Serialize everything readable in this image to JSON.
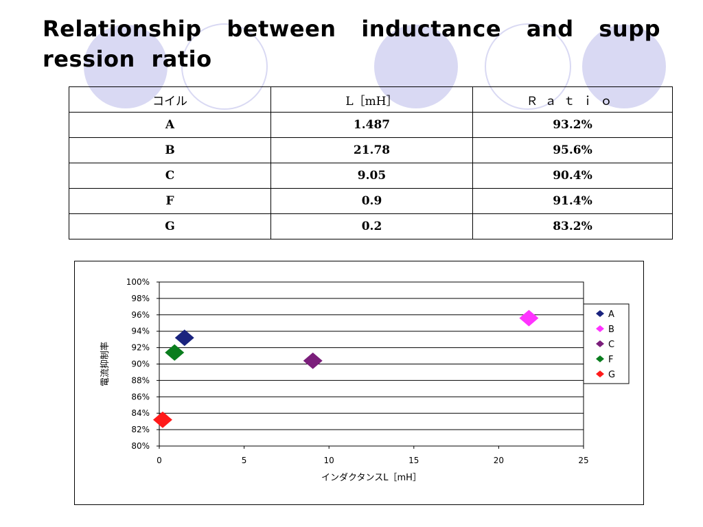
{
  "slide": {
    "title": "Relationship between inductance and supp ression ratio"
  },
  "table": {
    "headers": [
      "コイル",
      "L［mH］",
      "Ｒａｔｉｏ"
    ],
    "rows": [
      [
        "A",
        "1.487",
        "93.2%"
      ],
      [
        "B",
        "21.78",
        "95.6%"
      ],
      [
        "C",
        "9.05",
        "90.4%"
      ],
      [
        "F",
        "0.9",
        "91.4%"
      ],
      [
        "G",
        "0.2",
        "83.2%"
      ]
    ]
  },
  "chart_data": {
    "type": "scatter",
    "title": "",
    "xlabel": "インダクタンスL［mH］",
    "ylabel": "電流抑制率",
    "xlim": [
      0,
      25
    ],
    "ylim": [
      0.8,
      1.0
    ],
    "x_ticks": [
      "0",
      "5",
      "10",
      "15",
      "20",
      "25"
    ],
    "y_ticks": [
      "80%",
      "82%",
      "84%",
      "86%",
      "88%",
      "90%",
      "92%",
      "94%",
      "96%",
      "98%",
      "100%"
    ],
    "grid": "horizontal",
    "legend_position": "right",
    "series": [
      {
        "name": "A",
        "color": "#1a237e",
        "x": 1.487,
        "y": 0.932
      },
      {
        "name": "B",
        "color": "#ff33ff",
        "x": 21.78,
        "y": 0.956
      },
      {
        "name": "C",
        "color": "#7b1e7b",
        "x": 9.05,
        "y": 0.904
      },
      {
        "name": "F",
        "color": "#0a7d1e",
        "x": 0.9,
        "y": 0.914
      },
      {
        "name": "G",
        "color": "#ff1a1a",
        "x": 0.2,
        "y": 0.832
      }
    ]
  }
}
